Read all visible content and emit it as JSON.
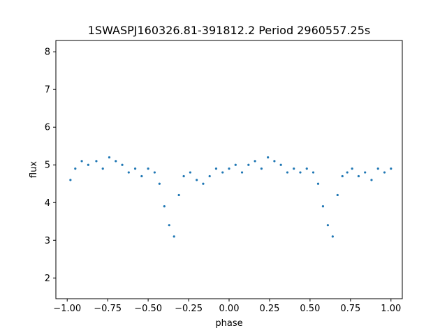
{
  "chart_data": {
    "type": "scatter",
    "title": "1SWASPJ160326.81-391812.2 Period 2960557.25s",
    "xlabel": "phase",
    "ylabel": "flux",
    "xlim": [
      -1.07,
      1.07
    ],
    "ylim": [
      1.45,
      8.3
    ],
    "xticks": [
      -1.0,
      -0.75,
      -0.5,
      -0.25,
      0.0,
      0.25,
      0.5,
      0.75,
      1.0
    ],
    "xtick_labels": [
      "−1.00",
      "−0.75",
      "−0.50",
      "−0.25",
      "0.00",
      "0.25",
      "0.50",
      "0.75",
      "1.00"
    ],
    "yticks": [
      2,
      3,
      4,
      5,
      6,
      7,
      8
    ],
    "ytick_labels": [
      "2",
      "3",
      "4",
      "5",
      "6",
      "7",
      "8"
    ],
    "grid": false,
    "point_color": "#1f77b4",
    "series": [
      {
        "x": [
          -0.98,
          -0.95,
          -0.91,
          -0.87,
          -0.82,
          -0.78,
          -0.74,
          -0.7,
          -0.66,
          -0.62,
          -0.58,
          -0.54,
          -0.5,
          -0.46,
          -0.43,
          -0.4,
          -0.37,
          -0.34,
          -0.31,
          -0.28,
          -0.24,
          -0.2,
          -0.16,
          -0.12,
          -0.08,
          -0.04,
          0.0,
          0.04,
          0.08,
          0.12,
          0.16,
          0.2,
          0.24,
          0.28,
          0.32,
          0.36,
          0.4,
          0.44,
          0.48,
          0.52,
          0.55,
          0.58,
          0.61,
          0.64,
          0.67,
          0.7,
          0.73,
          0.76,
          0.8,
          0.84,
          0.88,
          0.92,
          0.96,
          1.0
        ],
        "y": [
          4.6,
          4.9,
          5.1,
          5.0,
          5.1,
          4.9,
          5.2,
          5.1,
          5.0,
          4.8,
          4.9,
          4.7,
          4.9,
          4.8,
          4.5,
          3.9,
          3.4,
          3.1,
          4.2,
          4.7,
          4.8,
          4.6,
          4.5,
          4.7,
          4.9,
          4.8,
          4.9,
          5.0,
          4.8,
          5.0,
          5.1,
          4.9,
          5.2,
          5.1,
          5.0,
          4.8,
          4.9,
          4.8,
          4.9,
          4.8,
          4.5,
          3.9,
          3.4,
          3.1,
          4.2,
          4.7,
          4.8,
          4.9,
          4.7,
          4.8,
          4.6,
          4.9,
          4.8,
          4.9
        ]
      }
    ]
  }
}
